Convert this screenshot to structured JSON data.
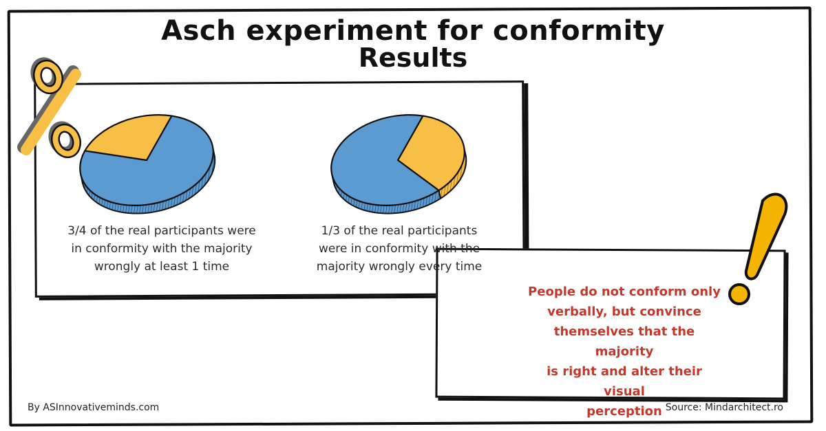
{
  "title": "Asch experiment for conformity",
  "subtitle": "Results",
  "colors": {
    "blue": "#5b9bd1",
    "yellow": "#f7bf45",
    "note_red": "#c0392b",
    "ink": "#111111"
  },
  "chart_data": [
    {
      "type": "pie",
      "slices": [
        {
          "label": "conformed at least 1 time",
          "value": 0.75,
          "color": "#5b9bd1"
        },
        {
          "label": "other",
          "value": 0.25,
          "color": "#f7bf45"
        }
      ],
      "caption": [
        "3/4 of  the real participants were",
        "in conformity with the majority",
        "wrongly at least 1 time"
      ]
    },
    {
      "type": "pie",
      "slices": [
        {
          "label": "conformed every time",
          "value": 0.3333,
          "color": "#f7bf45"
        },
        {
          "label": "other",
          "value": 0.6667,
          "color": "#5b9bd1"
        }
      ],
      "caption": [
        "1/3 of  the real participants",
        "were in conformity with the",
        "majority wrongly every time"
      ]
    }
  ],
  "note": [
    "People do not conform only",
    "verbally, but convince",
    "themselves that the majority",
    "is right and alter their visual",
    "perception"
  ],
  "footer": {
    "left": "By ASInnovativeminds.com",
    "right": "Source: Mindarchitect.ro"
  },
  "icons": {
    "percent": "percent-icon",
    "exclamation": "exclamation-icon"
  }
}
